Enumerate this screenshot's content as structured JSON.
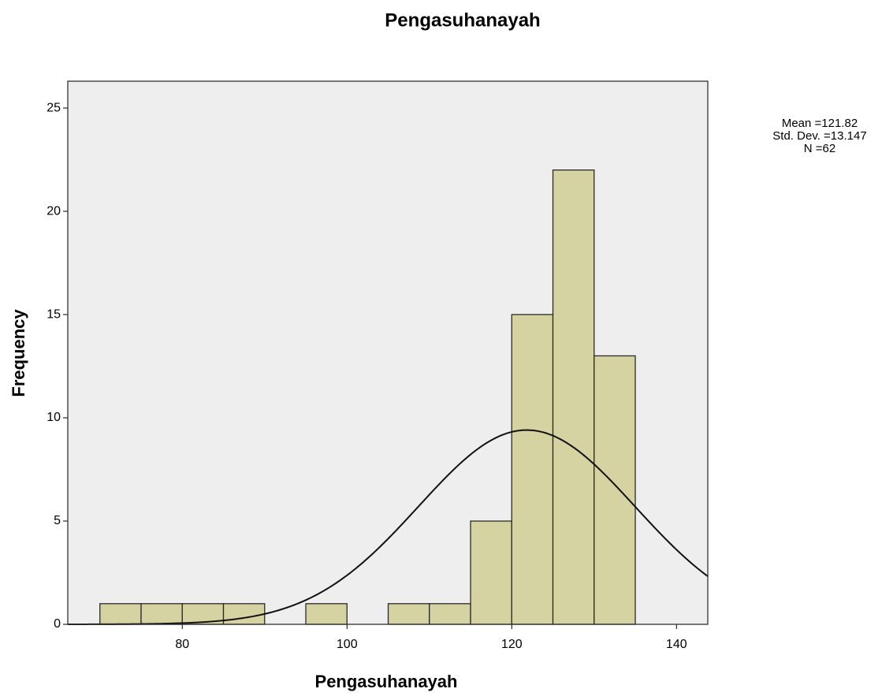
{
  "chart_data": {
    "type": "histogram",
    "title": "Pengasuhanayah",
    "x_label": "Pengasuhanayah",
    "y_label": "Frequency",
    "bins": [
      70,
      75,
      80,
      85,
      90,
      95,
      100,
      105,
      110,
      115,
      120,
      125,
      130,
      135
    ],
    "values": [
      1,
      1,
      1,
      1,
      0,
      1,
      0,
      1,
      1,
      5,
      15,
      22,
      13
    ],
    "color": "#d6d3a2",
    "xlim": [
      66.1,
      143.8
    ],
    "xticks": [
      80,
      100,
      120,
      140
    ],
    "ylim": [
      0,
      26.3
    ],
    "yticks": [
      0,
      5,
      10,
      15,
      20,
      25
    ],
    "annotations": [
      "Mean =121.82",
      "Std. Dev. =13.147",
      "N =62"
    ],
    "normal_curve": {
      "mean": 121.82,
      "std_dev": 13.147,
      "n": 62
    }
  }
}
